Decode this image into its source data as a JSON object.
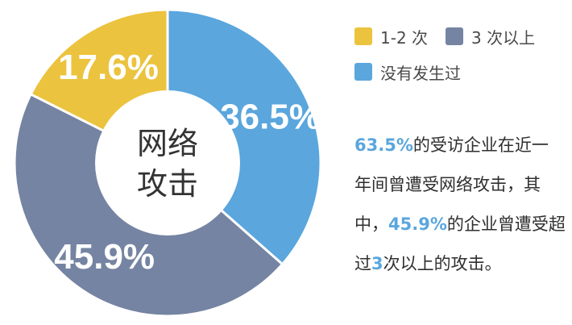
{
  "chart_data": {
    "type": "pie",
    "title": "",
    "center_label": [
      "网络",
      "攻击"
    ],
    "slices": [
      {
        "name": "没有发生过",
        "value": 36.5,
        "label": "36.5%",
        "color": "#5aa6dd"
      },
      {
        "name": "3 次以上",
        "value": 45.9,
        "label": "45.9%",
        "color": "#7584a2"
      },
      {
        "name": "1-2 次",
        "value": 17.6,
        "label": "17.6%",
        "color": "#ecc33e"
      }
    ],
    "legend": [
      {
        "label": "1-2 次",
        "color": "#ecc33e"
      },
      {
        "label": "3 次以上",
        "color": "#7584a2"
      },
      {
        "label": "没有发生过",
        "color": "#5aa6dd"
      }
    ],
    "legend_placement": "top-right"
  },
  "note": {
    "line1": {
      "hl": "63.5%",
      "text": "的受访企业在近一"
    },
    "line2": {
      "text": "年间曾遭受网络攻击，其"
    },
    "line3": {
      "pre": "中，",
      "hl": "45.9%",
      "text": "的企业曾遭受超"
    },
    "line4": {
      "pre": "过",
      "hl": "3",
      "text": "次以上的攻击。"
    }
  }
}
